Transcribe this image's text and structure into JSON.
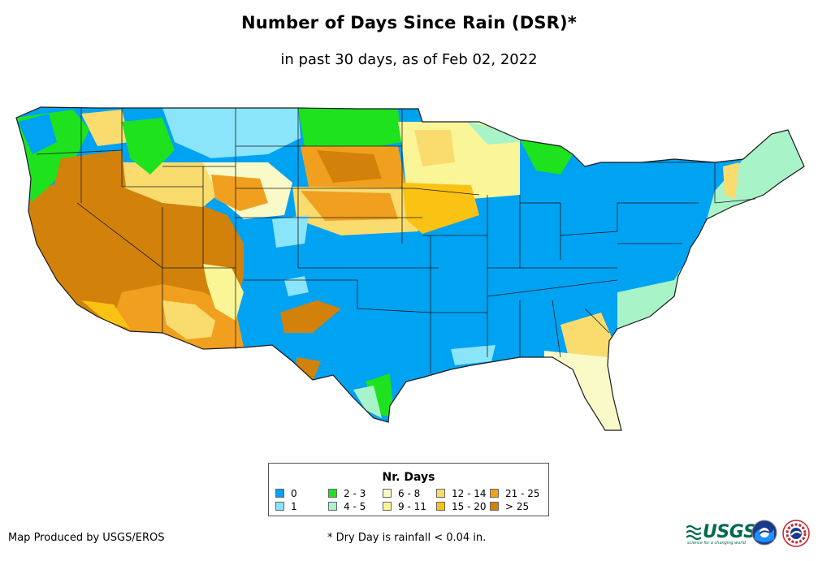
{
  "title": "Number of Days Since Rain (DSR)*",
  "subtitle": "in past 30 days, as of Feb 02, 2022",
  "legend": {
    "title": "Nr. Days",
    "items": [
      {
        "label": "0",
        "color": "#00a2f2"
      },
      {
        "label": "1",
        "color": "#8ae4fa"
      },
      {
        "label": "2 - 3",
        "color": "#1ee21e"
      },
      {
        "label": "4 - 5",
        "color": "#a8f4c8"
      },
      {
        "label": "6 - 8",
        "color": "#fafac8"
      },
      {
        "label": "9 - 11",
        "color": "#faf596"
      },
      {
        "label": "12 - 14",
        "color": "#fadc6e"
      },
      {
        "label": "15 - 20",
        "color": "#fac314"
      },
      {
        "label": "21 - 25",
        "color": "#f0a01e"
      },
      {
        "label": "> 25",
        "color": "#d2820a"
      }
    ]
  },
  "credit": "Map Produced by USGS/EROS",
  "footnote": "* Dry Day is rainfall < 0.04 in.",
  "logos": {
    "usgs": "USGS",
    "usgs_tagline": "science for a changing world",
    "noaa": "noaa-logo",
    "nws": "nws-logo"
  }
}
